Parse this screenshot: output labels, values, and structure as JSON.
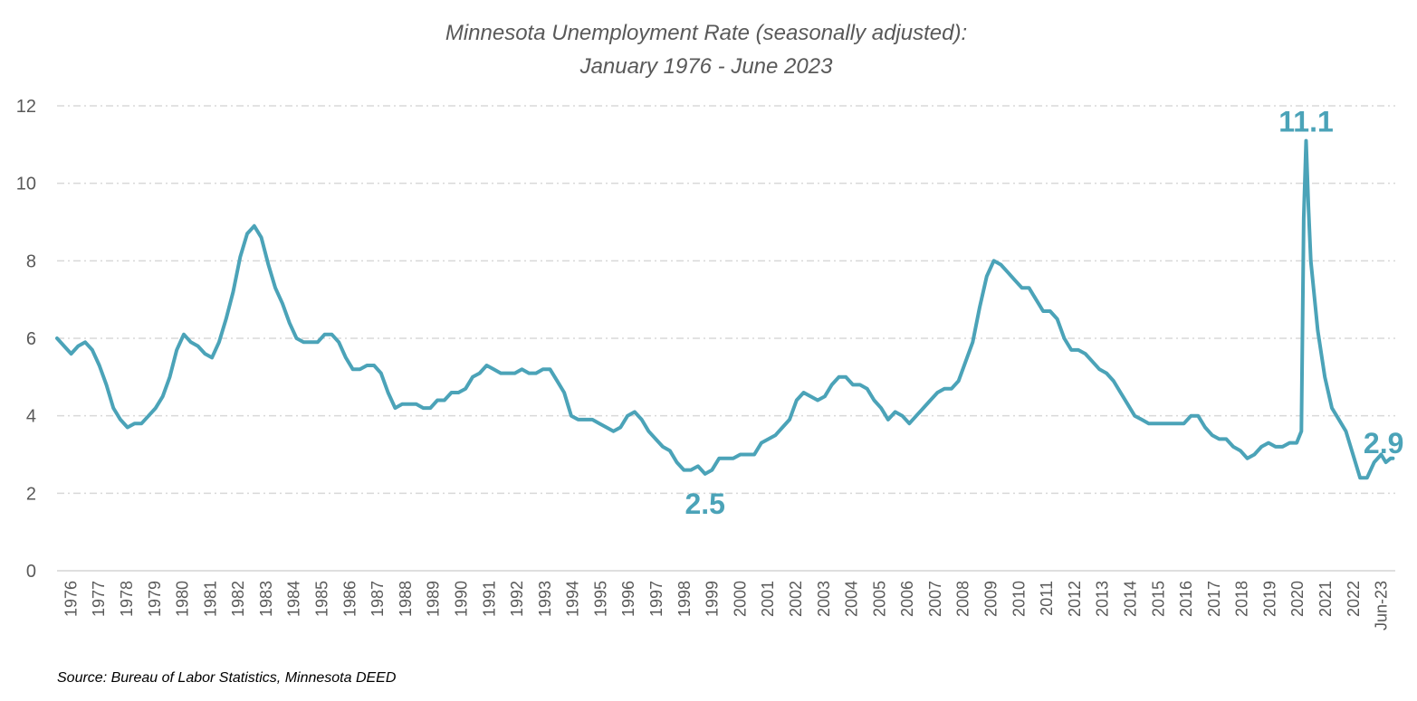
{
  "chart_data": {
    "type": "line",
    "title_line1": "Minnesota Unemployment Rate (seasonally adjusted):",
    "title_line2": "January 1976 - June 2023",
    "source": "Source: Bureau of Labor Statistics, Minnesota DEED",
    "xlabel": "",
    "ylabel": "",
    "ylim": [
      0,
      12
    ],
    "yticks": [
      "0",
      "2",
      "4",
      "6",
      "8",
      "10",
      "12"
    ],
    "grid": "horizontal dashed",
    "xticks": [
      "1976",
      "1977",
      "1978",
      "1979",
      "1980",
      "1981",
      "1982",
      "1983",
      "1984",
      "1985",
      "1986",
      "1987",
      "1988",
      "1989",
      "1990",
      "1991",
      "1992",
      "1993",
      "1994",
      "1995",
      "1996",
      "1997",
      "1998",
      "1999",
      "2000",
      "2001",
      "2002",
      "2003",
      "2004",
      "2005",
      "2006",
      "2007",
      "2008",
      "2009",
      "2010",
      "2011",
      "2012",
      "2013",
      "2014",
      "2015",
      "2016",
      "2017",
      "2018",
      "2019",
      "2020",
      "2021",
      "2022",
      "Jun-23"
    ],
    "line_color": "#4BA3B8",
    "series": [
      {
        "points": [
          [
            "1976-01",
            6.0
          ],
          [
            "1976-04",
            5.8
          ],
          [
            "1976-07",
            5.6
          ],
          [
            "1976-10",
            5.8
          ],
          [
            "1977-01",
            5.9
          ],
          [
            "1977-04",
            5.7
          ],
          [
            "1977-07",
            5.3
          ],
          [
            "1977-10",
            4.8
          ],
          [
            "1978-01",
            4.2
          ],
          [
            "1978-04",
            3.9
          ],
          [
            "1978-07",
            3.7
          ],
          [
            "1978-10",
            3.8
          ],
          [
            "1979-01",
            3.8
          ],
          [
            "1979-04",
            4.0
          ],
          [
            "1979-07",
            4.2
          ],
          [
            "1979-10",
            4.5
          ],
          [
            "1980-01",
            5.0
          ],
          [
            "1980-04",
            5.7
          ],
          [
            "1980-07",
            6.1
          ],
          [
            "1980-10",
            5.9
          ],
          [
            "1981-01",
            5.8
          ],
          [
            "1981-04",
            5.6
          ],
          [
            "1981-07",
            5.5
          ],
          [
            "1981-10",
            5.9
          ],
          [
            "1982-01",
            6.5
          ],
          [
            "1982-04",
            7.2
          ],
          [
            "1982-07",
            8.1
          ],
          [
            "1982-10",
            8.7
          ],
          [
            "1983-01",
            8.9
          ],
          [
            "1983-04",
            8.6
          ],
          [
            "1983-07",
            7.9
          ],
          [
            "1983-10",
            7.3
          ],
          [
            "1984-01",
            6.9
          ],
          [
            "1984-04",
            6.4
          ],
          [
            "1984-07",
            6.0
          ],
          [
            "1984-10",
            5.9
          ],
          [
            "1985-01",
            5.9
          ],
          [
            "1985-04",
            5.9
          ],
          [
            "1985-07",
            6.1
          ],
          [
            "1985-10",
            6.1
          ],
          [
            "1986-01",
            5.9
          ],
          [
            "1986-04",
            5.5
          ],
          [
            "1986-07",
            5.2
          ],
          [
            "1986-10",
            5.2
          ],
          [
            "1987-01",
            5.3
          ],
          [
            "1987-04",
            5.3
          ],
          [
            "1987-07",
            5.1
          ],
          [
            "1987-10",
            4.6
          ],
          [
            "1988-01",
            4.2
          ],
          [
            "1988-04",
            4.3
          ],
          [
            "1988-07",
            4.3
          ],
          [
            "1988-10",
            4.3
          ],
          [
            "1989-01",
            4.2
          ],
          [
            "1989-04",
            4.2
          ],
          [
            "1989-07",
            4.4
          ],
          [
            "1989-10",
            4.4
          ],
          [
            "1990-01",
            4.6
          ],
          [
            "1990-04",
            4.6
          ],
          [
            "1990-07",
            4.7
          ],
          [
            "1990-10",
            5.0
          ],
          [
            "1991-01",
            5.1
          ],
          [
            "1991-04",
            5.3
          ],
          [
            "1991-07",
            5.2
          ],
          [
            "1991-10",
            5.1
          ],
          [
            "1992-01",
            5.1
          ],
          [
            "1992-04",
            5.1
          ],
          [
            "1992-07",
            5.2
          ],
          [
            "1992-10",
            5.1
          ],
          [
            "1993-01",
            5.1
          ],
          [
            "1993-04",
            5.2
          ],
          [
            "1993-07",
            5.2
          ],
          [
            "1993-10",
            4.9
          ],
          [
            "1994-01",
            4.6
          ],
          [
            "1994-04",
            4.0
          ],
          [
            "1994-07",
            3.9
          ],
          [
            "1994-10",
            3.9
          ],
          [
            "1995-01",
            3.9
          ],
          [
            "1995-04",
            3.8
          ],
          [
            "1995-07",
            3.7
          ],
          [
            "1995-10",
            3.6
          ],
          [
            "1996-01",
            3.7
          ],
          [
            "1996-04",
            4.0
          ],
          [
            "1996-07",
            4.1
          ],
          [
            "1996-10",
            3.9
          ],
          [
            "1997-01",
            3.6
          ],
          [
            "1997-04",
            3.4
          ],
          [
            "1997-07",
            3.2
          ],
          [
            "1997-10",
            3.1
          ],
          [
            "1998-01",
            2.8
          ],
          [
            "1998-04",
            2.6
          ],
          [
            "1998-07",
            2.6
          ],
          [
            "1998-10",
            2.7
          ],
          [
            "1999-01",
            2.5
          ],
          [
            "1999-04",
            2.6
          ],
          [
            "1999-07",
            2.9
          ],
          [
            "1999-10",
            2.9
          ],
          [
            "2000-01",
            2.9
          ],
          [
            "2000-04",
            3.0
          ],
          [
            "2000-07",
            3.0
          ],
          [
            "2000-10",
            3.0
          ],
          [
            "2001-01",
            3.3
          ],
          [
            "2001-04",
            3.4
          ],
          [
            "2001-07",
            3.5
          ],
          [
            "2001-10",
            3.7
          ],
          [
            "2002-01",
            3.9
          ],
          [
            "2002-04",
            4.4
          ],
          [
            "2002-07",
            4.6
          ],
          [
            "2002-10",
            4.5
          ],
          [
            "2003-01",
            4.4
          ],
          [
            "2003-04",
            4.5
          ],
          [
            "2003-07",
            4.8
          ],
          [
            "2003-10",
            5.0
          ],
          [
            "2004-01",
            5.0
          ],
          [
            "2004-04",
            4.8
          ],
          [
            "2004-07",
            4.8
          ],
          [
            "2004-10",
            4.7
          ],
          [
            "2005-01",
            4.4
          ],
          [
            "2005-04",
            4.2
          ],
          [
            "2005-07",
            3.9
          ],
          [
            "2005-10",
            4.1
          ],
          [
            "2006-01",
            4.0
          ],
          [
            "2006-04",
            3.8
          ],
          [
            "2006-07",
            4.0
          ],
          [
            "2006-10",
            4.2
          ],
          [
            "2007-01",
            4.4
          ],
          [
            "2007-04",
            4.6
          ],
          [
            "2007-07",
            4.7
          ],
          [
            "2007-10",
            4.7
          ],
          [
            "2008-01",
            4.9
          ],
          [
            "2008-04",
            5.4
          ],
          [
            "2008-07",
            5.9
          ],
          [
            "2008-10",
            6.8
          ],
          [
            "2009-01",
            7.6
          ],
          [
            "2009-04",
            8.0
          ],
          [
            "2009-07",
            7.9
          ],
          [
            "2009-10",
            7.7
          ],
          [
            "2010-01",
            7.5
          ],
          [
            "2010-04",
            7.3
          ],
          [
            "2010-07",
            7.3
          ],
          [
            "2010-10",
            7.0
          ],
          [
            "2011-01",
            6.7
          ],
          [
            "2011-04",
            6.7
          ],
          [
            "2011-07",
            6.5
          ],
          [
            "2011-10",
            6.0
          ],
          [
            "2012-01",
            5.7
          ],
          [
            "2012-04",
            5.7
          ],
          [
            "2012-07",
            5.6
          ],
          [
            "2012-10",
            5.4
          ],
          [
            "2013-01",
            5.2
          ],
          [
            "2013-04",
            5.1
          ],
          [
            "2013-07",
            4.9
          ],
          [
            "2013-10",
            4.6
          ],
          [
            "2014-01",
            4.3
          ],
          [
            "2014-04",
            4.0
          ],
          [
            "2014-07",
            3.9
          ],
          [
            "2014-10",
            3.8
          ],
          [
            "2015-01",
            3.8
          ],
          [
            "2015-04",
            3.8
          ],
          [
            "2015-07",
            3.8
          ],
          [
            "2015-10",
            3.8
          ],
          [
            "2016-01",
            3.8
          ],
          [
            "2016-04",
            4.0
          ],
          [
            "2016-07",
            4.0
          ],
          [
            "2016-10",
            3.7
          ],
          [
            "2017-01",
            3.5
          ],
          [
            "2017-04",
            3.4
          ],
          [
            "2017-07",
            3.4
          ],
          [
            "2017-10",
            3.2
          ],
          [
            "2018-01",
            3.1
          ],
          [
            "2018-04",
            2.9
          ],
          [
            "2018-07",
            3.0
          ],
          [
            "2018-10",
            3.2
          ],
          [
            "2019-01",
            3.3
          ],
          [
            "2019-04",
            3.2
          ],
          [
            "2019-07",
            3.2
          ],
          [
            "2019-10",
            3.3
          ],
          [
            "2020-01",
            3.3
          ],
          [
            "2020-03",
            3.6
          ],
          [
            "2020-04",
            9.1
          ],
          [
            "2020-05",
            11.1
          ],
          [
            "2020-06",
            9.4
          ],
          [
            "2020-07",
            8.0
          ],
          [
            "2020-10",
            6.2
          ],
          [
            "2021-01",
            5.0
          ],
          [
            "2021-04",
            4.2
          ],
          [
            "2021-07",
            3.9
          ],
          [
            "2021-10",
            3.6
          ],
          [
            "2022-01",
            3.0
          ],
          [
            "2022-04",
            2.4
          ],
          [
            "2022-07",
            2.4
          ],
          [
            "2022-10",
            2.8
          ],
          [
            "2023-01",
            3.0
          ],
          [
            "2023-03",
            2.8
          ],
          [
            "2023-05",
            2.9
          ],
          [
            "2023-06",
            2.9
          ]
        ]
      }
    ],
    "annotations": [
      {
        "label": "11.1",
        "date": "2020-05",
        "value": 11.1
      },
      {
        "label": "2.5",
        "date": "1999-01",
        "value": 2.5
      },
      {
        "label": "2.9",
        "date": "2023-06",
        "value": 2.9
      }
    ]
  }
}
